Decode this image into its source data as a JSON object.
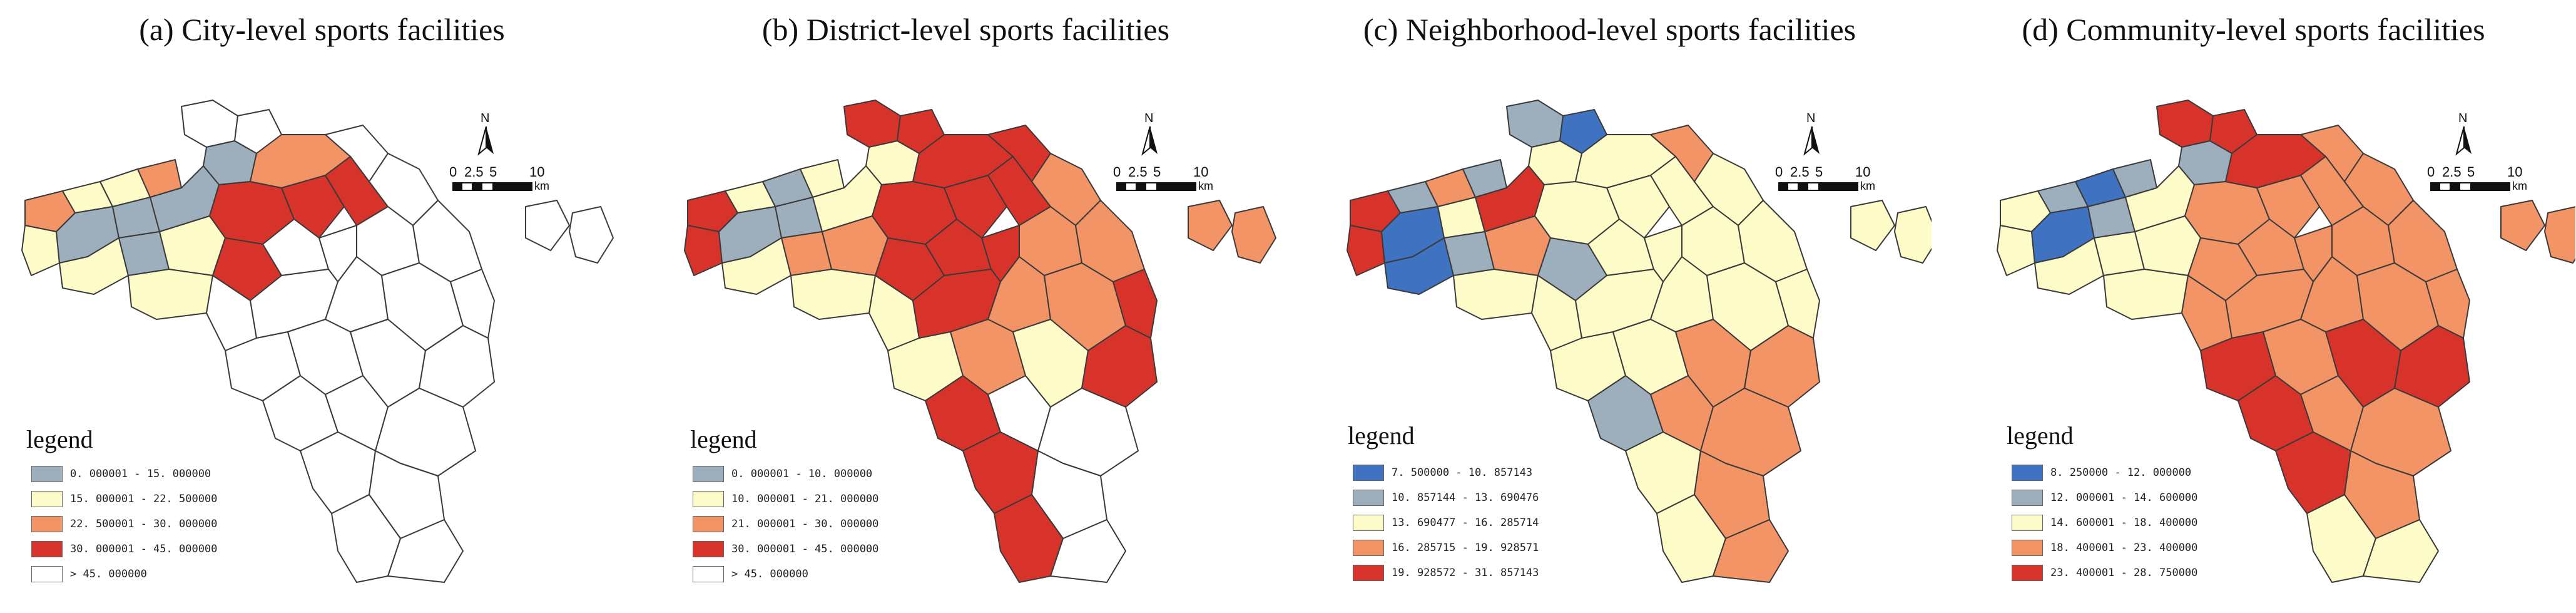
{
  "colors": {
    "white": "#ffffff",
    "blue": "#3f73c1",
    "grey": "#9daebd",
    "cream": "#fdfbc8",
    "orange": "#f39466",
    "red": "#d8332b"
  },
  "compass": {
    "north": "N"
  },
  "scalebar": {
    "ticks": [
      "0",
      "2.5",
      "5",
      "10"
    ],
    "unit": "km"
  },
  "panels": [
    {
      "title": "(a)  City-level sports facilities",
      "legend_title": "legend",
      "legend": [
        {
          "label": "0. 000001 - 15. 000000",
          "color": "#9daebd"
        },
        {
          "label": "15. 000001 - 22. 500000",
          "color": "#fdfbc8"
        },
        {
          "label": "22. 500001 - 30. 000000",
          "color": "#f39466"
        },
        {
          "label": "30. 000001 - 45. 000000",
          "color": "#d8332b"
        },
        {
          "label": "> 45. 000000",
          "color": "#ffffff"
        }
      ]
    },
    {
      "title": "(b)  District-level sports facilities",
      "legend_title": "legend",
      "legend": [
        {
          "label": "0. 000001 - 10. 000000",
          "color": "#9daebd"
        },
        {
          "label": "10. 000001 - 21. 000000",
          "color": "#fdfbc8"
        },
        {
          "label": "21. 000001 - 30. 000000",
          "color": "#f39466"
        },
        {
          "label": "30. 000001 - 45. 000000",
          "color": "#d8332b"
        },
        {
          "label": "> 45. 000000",
          "color": "#ffffff"
        }
      ]
    },
    {
      "title": "(c)  Neighborhood-level sports facilities",
      "legend_title": "legend",
      "legend": [
        {
          "label": "7. 500000 - 10. 857143",
          "color": "#3f73c1"
        },
        {
          "label": "10. 857144 - 13. 690476",
          "color": "#9daebd"
        },
        {
          "label": "13. 690477 - 16. 285714",
          "color": "#fdfbc8"
        },
        {
          "label": "16. 285715 - 19. 928571",
          "color": "#f39466"
        },
        {
          "label": "19. 928572 - 31. 857143",
          "color": "#d8332b"
        }
      ]
    },
    {
      "title": "(d)  Community-level sports facilities",
      "legend_title": "legend",
      "legend": [
        {
          "label": "8. 250000 - 12. 000000",
          "color": "#3f73c1"
        },
        {
          "label": "12. 000001 - 14. 600000",
          "color": "#9daebd"
        },
        {
          "label": "14. 600001 - 18. 400000",
          "color": "#fdfbc8"
        },
        {
          "label": "18. 400001 - 23. 400000",
          "color": "#f39466"
        },
        {
          "label": "23. 400001 - 28. 750000",
          "color": "#d8332b"
        }
      ]
    }
  ]
}
